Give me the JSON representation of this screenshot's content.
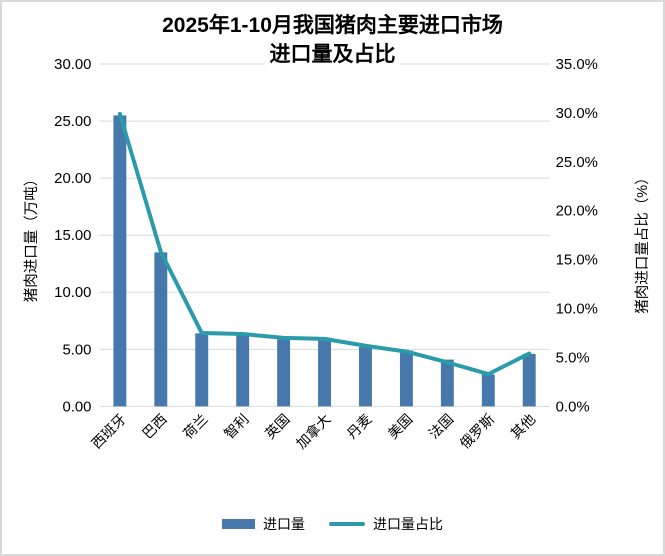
{
  "title": {
    "line1": "2025年1-10月我国猪肉主要进口市场",
    "line2": "进口量及占比",
    "full": "2025年1-10月我国猪肉主要进口市场进口量及占比"
  },
  "chart_data": {
    "type": "combo-bar-line",
    "title": "2025年1-10月我国猪肉主要进口市场进口量及占比",
    "categories": [
      "西班牙",
      "巴西",
      "荷兰",
      "智利",
      "英国",
      "加拿大",
      "丹麦",
      "美国",
      "法国",
      "俄罗斯",
      "其他"
    ],
    "series": [
      {
        "name": "进口量",
        "type": "bar",
        "axis": "left",
        "unit": "万吨",
        "color": "#4678ab",
        "values": [
          25.5,
          13.5,
          6.4,
          6.3,
          5.9,
          5.9,
          5.2,
          4.9,
          4.1,
          2.8,
          4.6
        ]
      },
      {
        "name": "进口量占比",
        "type": "line",
        "axis": "right",
        "unit": "%",
        "color": "#2a9ba8",
        "values": [
          29.9,
          15.8,
          7.5,
          7.4,
          7.0,
          6.9,
          6.2,
          5.6,
          4.5,
          3.3,
          5.4
        ]
      }
    ],
    "left_axis": {
      "title": "猪肉进口量（万吨）",
      "min": 0,
      "max": 30,
      "step": 5,
      "ticks": [
        "0.00",
        "5.00",
        "10.00",
        "15.00",
        "20.00",
        "25.00",
        "30.00"
      ]
    },
    "right_axis": {
      "title": "猪肉进口量占比（%）",
      "min": 0,
      "max": 35,
      "step": 5,
      "ticks": [
        "0.0%",
        "5.0%",
        "10.0%",
        "15.0%",
        "20.0%",
        "25.0%",
        "30.0%",
        "35.0%"
      ]
    },
    "grid": true,
    "legend_position": "bottom"
  },
  "colors": {
    "bar": "#4678ab",
    "line": "#2a9ba8",
    "grid": "#d9d9d9",
    "border": "#d9d9d9",
    "text": "#000000",
    "background": "#ffffff"
  }
}
